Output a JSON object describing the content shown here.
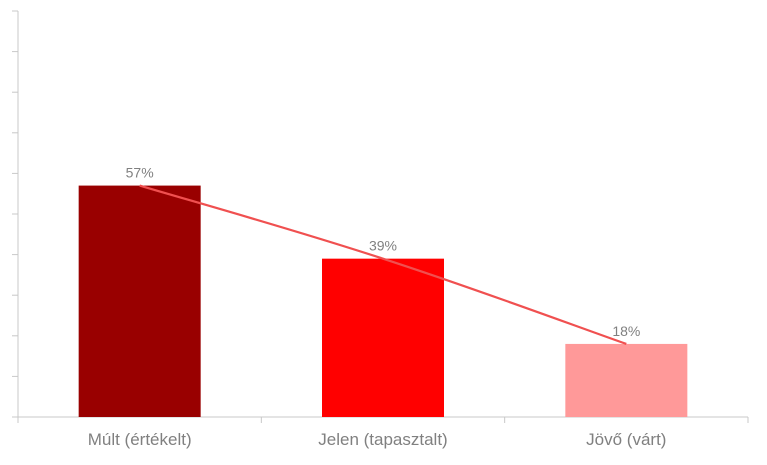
{
  "chart_data": {
    "type": "bar",
    "categories": [
      "Múlt (értékelt)",
      "Jelen (tapasztalt)",
      "Jövő (várt)"
    ],
    "values": [
      57,
      39,
      18
    ],
    "data_labels": [
      "57%",
      "39%",
      "18%"
    ],
    "bar_colors": [
      "#990000",
      "#ff0000",
      "#ff9999"
    ],
    "trendline": {
      "type": "line",
      "color": "#f05050",
      "values": [
        57,
        39,
        18
      ]
    },
    "title": "",
    "xlabel": "",
    "ylabel": "",
    "ylim": [
      0,
      100
    ],
    "grid": false,
    "legend": "none",
    "y_tick_labels_shown": false
  }
}
